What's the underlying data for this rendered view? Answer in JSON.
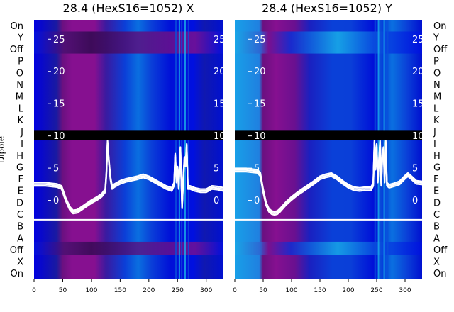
{
  "chart_data": [
    {
      "type": "heatmap",
      "title": "28.4 (HexS16=1052) X",
      "ylabel": "Dipole",
      "xlim": [
        0,
        330
      ],
      "x_ticks": [
        0,
        50,
        100,
        150,
        200,
        250,
        300
      ],
      "row_labels": [
        "On",
        "Y",
        "Off",
        "P",
        "O",
        "N",
        "M",
        "L",
        "K",
        "J",
        "I",
        "H",
        "G",
        "F",
        "E",
        "D",
        "C",
        "B",
        "A",
        "Off",
        "X",
        "On"
      ],
      "inner_ticks": [
        25,
        20,
        15,
        10,
        5,
        0
      ],
      "inner_ylim": [
        -3,
        28
      ],
      "masked_band": [
        9.3,
        10.8
      ],
      "white_hline": -3,
      "trace": {
        "name": "",
        "x": [
          0,
          10,
          20,
          30,
          40,
          48,
          55,
          62,
          68,
          75,
          82,
          90,
          100,
          110,
          118,
          124,
          126,
          128,
          130,
          133,
          136,
          140,
          150,
          160,
          170,
          180,
          190,
          200,
          210,
          220,
          230,
          240,
          244,
          246,
          248,
          250,
          252,
          255,
          258,
          260,
          262,
          264,
          266,
          268,
          272,
          280,
          290,
          300,
          310,
          320,
          330
        ],
        "y": [
          2.5,
          2.5,
          2.5,
          2.4,
          2.3,
          2.0,
          0.2,
          -1.2,
          -1.8,
          -1.7,
          -1.3,
          -0.8,
          -0.2,
          0.3,
          0.8,
          1.5,
          4.0,
          9.0,
          6.5,
          3.5,
          2.0,
          2.3,
          2.8,
          3.1,
          3.3,
          3.5,
          3.8,
          3.5,
          3.0,
          2.5,
          2.0,
          1.7,
          2.5,
          7.0,
          3.0,
          5.0,
          2.0,
          8.0,
          -1.0,
          3.5,
          6.5,
          5.5,
          8.5,
          2.0,
          2.0,
          1.7,
          1.5,
          1.5,
          2.0,
          1.9,
          1.7
        ]
      },
      "colorscale": [
        "#0b0b7a",
        "#0000ff",
        "#0a6fe0",
        "#18b4e8",
        "#4a0a5a",
        "#7a1090",
        "#880a8a"
      ]
    },
    {
      "type": "heatmap",
      "title": "28.4 (HexS16=1052) Y",
      "ylabel": "",
      "xlim": [
        0,
        330
      ],
      "x_ticks": [
        0,
        50,
        100,
        150,
        200,
        250,
        300
      ],
      "row_labels": [
        "On",
        "Y",
        "Off",
        "P",
        "O",
        "N",
        "M",
        "L",
        "K",
        "J",
        "I",
        "H",
        "G",
        "F",
        "E",
        "D",
        "C",
        "B",
        "A",
        "Off",
        "X",
        "On"
      ],
      "inner_ticks": [
        25,
        20,
        15,
        10,
        5,
        0
      ],
      "inner_ylim": [
        -3,
        28
      ],
      "masked_band": [
        9.3,
        10.8
      ],
      "white_hline": -3,
      "trace": {
        "name": "",
        "x": [
          0,
          10,
          20,
          30,
          40,
          45,
          50,
          55,
          60,
          65,
          70,
          75,
          80,
          90,
          100,
          110,
          120,
          130,
          140,
          150,
          160,
          170,
          180,
          190,
          200,
          210,
          220,
          230,
          240,
          244,
          246,
          248,
          250,
          252,
          254,
          256,
          258,
          260,
          262,
          264,
          266,
          268,
          272,
          280,
          290,
          300,
          305,
          310,
          320,
          330
        ],
        "y": [
          4.7,
          4.7,
          4.7,
          4.6,
          4.5,
          4.0,
          1.5,
          -0.5,
          -1.5,
          -1.9,
          -2.0,
          -1.9,
          -1.5,
          -0.5,
          0.3,
          1.0,
          1.6,
          2.2,
          2.8,
          3.5,
          3.8,
          4.0,
          3.5,
          2.8,
          2.2,
          1.8,
          1.7,
          1.8,
          1.8,
          2.5,
          9.0,
          5.0,
          8.5,
          3.0,
          6.0,
          9.0,
          2.5,
          7.0,
          8.0,
          3.0,
          9.0,
          2.5,
          2.2,
          2.4,
          2.7,
          3.6,
          4.0,
          3.6,
          2.8,
          2.7
        ]
      },
      "colorscale": [
        "#0b0b7a",
        "#0000ff",
        "#0a6fe0",
        "#18b4e8",
        "#4a0a5a",
        "#7a1090",
        "#880a8a"
      ]
    }
  ]
}
